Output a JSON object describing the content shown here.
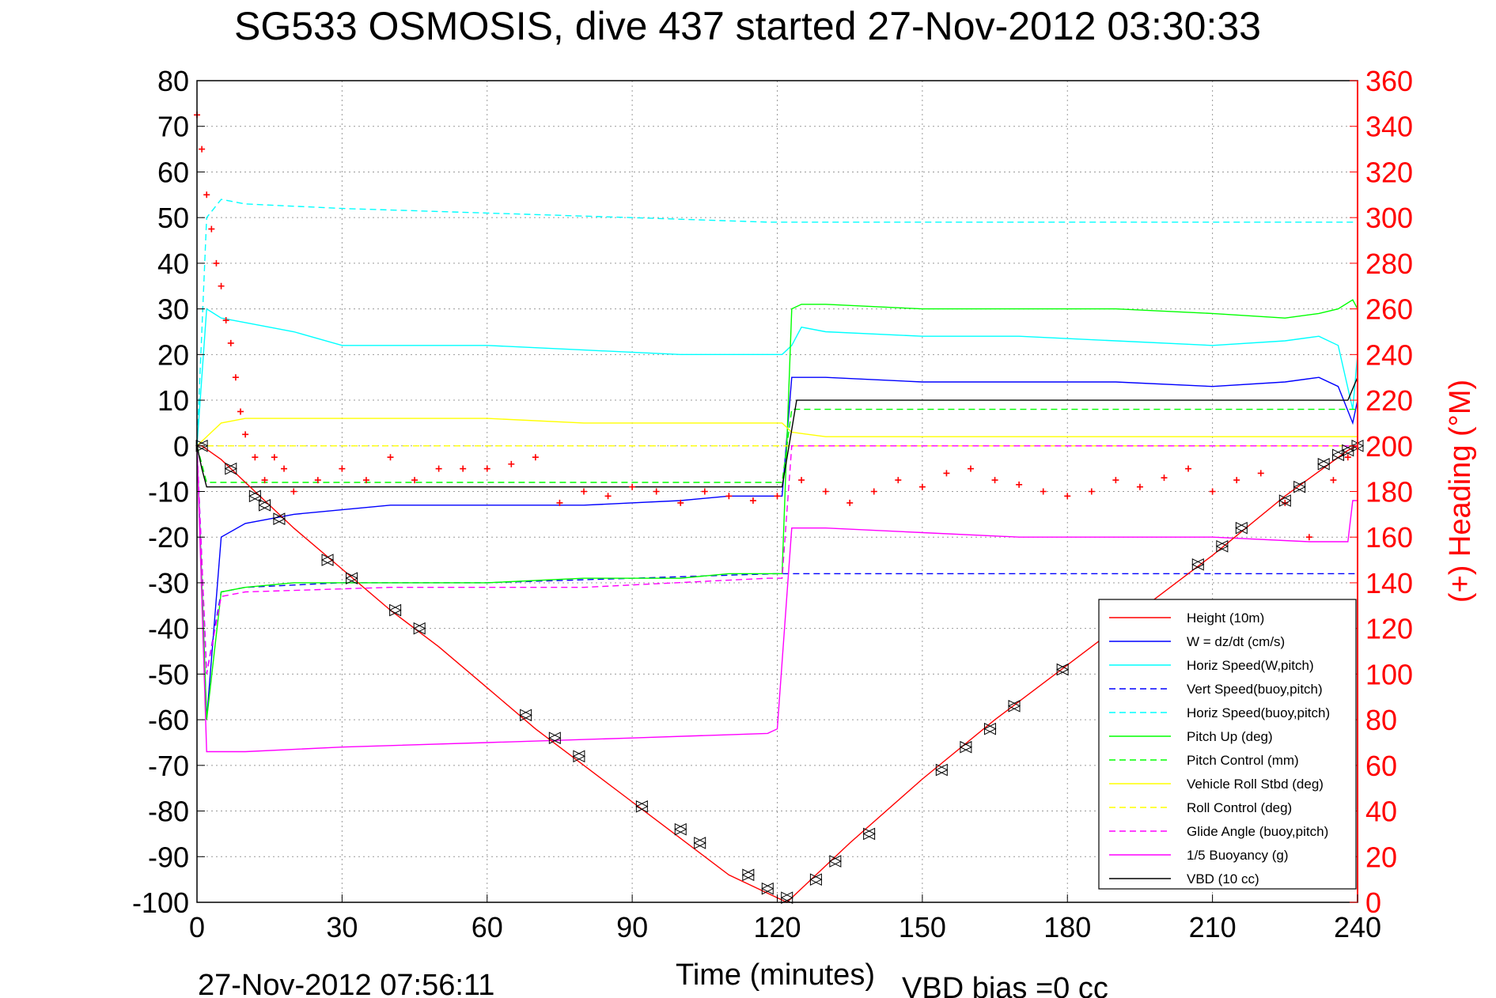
{
  "chart_data": {
    "type": "line",
    "title": "SG533 OSMOSIS, dive 437 started 27-Nov-2012 03:30:33",
    "xlabel": "Time (minutes)",
    "ylabel_right": "(+) Heading (°M)",
    "footer_left": "27-Nov-2012 07:56:11",
    "footer_right": "VBD bias =0 cc",
    "xlim": [
      0,
      240
    ],
    "ylim": [
      -100,
      80
    ],
    "ylim_right": [
      0,
      360
    ],
    "x_ticks": [
      0,
      30,
      60,
      90,
      120,
      150,
      180,
      210,
      240
    ],
    "y_ticks": [
      80,
      70,
      60,
      50,
      40,
      30,
      20,
      10,
      0,
      -10,
      -20,
      -30,
      -40,
      -50,
      -60,
      -70,
      -80,
      -90,
      -100
    ],
    "y_ticks_right": [
      360,
      340,
      320,
      300,
      280,
      260,
      240,
      220,
      200,
      180,
      160,
      140,
      120,
      100,
      80,
      60,
      40,
      20,
      0
    ],
    "grid": true,
    "legend_position": "bottom-right",
    "colors": {
      "height": "#ff0000",
      "w": "#0000ff",
      "horiz_speed": "#00ffff",
      "vert_speed_buoy": "#0000ff",
      "horiz_speed_buoy": "#00ffff",
      "pitch": "#00ff00",
      "pitch_control": "#00ff00",
      "roll": "#ffff00",
      "roll_control": "#ffff00",
      "glide_angle": "#ff00ff",
      "buoyancy": "#ff00ff",
      "vbd": "#000000",
      "heading": "#ff0000",
      "right_axis": "#ff0000"
    },
    "series": [
      {
        "name": "Height (10m)",
        "color": "#ff0000",
        "dash": "solid",
        "x": [
          0,
          1,
          5,
          10,
          20,
          30,
          40,
          50,
          60,
          70,
          80,
          90,
          100,
          110,
          118,
          122,
          126,
          135,
          150,
          165,
          180,
          195,
          210,
          225,
          238,
          240
        ],
        "y": [
          0,
          0,
          -3,
          -8,
          -18,
          -27,
          -36,
          -44,
          -53,
          -62,
          -70,
          -78,
          -86,
          -94,
          -98,
          -100,
          -96,
          -87,
          -73,
          -60,
          -48,
          -36,
          -24,
          -11,
          -1,
          0
        ]
      },
      {
        "name": "W = dz/dt (cm/s)",
        "color": "#0000ff",
        "dash": "solid",
        "x": [
          0,
          2,
          5,
          10,
          20,
          40,
          60,
          80,
          100,
          110,
          118,
          120,
          121,
          123,
          125,
          130,
          150,
          170,
          190,
          210,
          225,
          232,
          236,
          239,
          240
        ],
        "y": [
          0,
          -60,
          -20,
          -17,
          -15,
          -13,
          -13,
          -13,
          -12,
          -11,
          -11,
          -11,
          -11,
          15,
          15,
          15,
          14,
          14,
          14,
          13,
          14,
          15,
          13,
          5,
          10
        ]
      },
      {
        "name": "Horiz Speed(W,pitch)",
        "color": "#00ffff",
        "dash": "solid",
        "x": [
          0,
          2,
          5,
          10,
          20,
          30,
          40,
          60,
          80,
          100,
          118,
          121,
          123,
          125,
          130,
          150,
          170,
          190,
          210,
          225,
          232,
          236,
          239,
          240
        ],
        "y": [
          0,
          30,
          28,
          27,
          25,
          22,
          22,
          22,
          21,
          20,
          20,
          20,
          22,
          26,
          25,
          24,
          24,
          23,
          22,
          23,
          24,
          22,
          8,
          20
        ]
      },
      {
        "name": "Vert Speed(buoy,pitch)",
        "color": "#0000ff",
        "dash": "dashed",
        "x": [
          0,
          2,
          5,
          10,
          30,
          60,
          90,
          120,
          121,
          240
        ],
        "y": [
          0,
          -50,
          -32,
          -31,
          -30,
          -30,
          -29,
          -28,
          -28,
          -28
        ]
      },
      {
        "name": "Horiz Speed(buoy,pitch)",
        "color": "#00ffff",
        "dash": "dashed",
        "x": [
          0,
          2,
          5,
          10,
          30,
          60,
          90,
          118,
          121,
          240
        ],
        "y": [
          0,
          50,
          54,
          53,
          52,
          51,
          50,
          49,
          49,
          49
        ]
      },
      {
        "name": "Pitch Up (deg)",
        "color": "#00ff00",
        "dash": "solid",
        "x": [
          0,
          2,
          5,
          10,
          20,
          40,
          60,
          80,
          100,
          110,
          118,
          120,
          121,
          123,
          125,
          130,
          150,
          170,
          190,
          210,
          225,
          232,
          236,
          239,
          240
        ],
        "y": [
          0,
          -60,
          -32,
          -31,
          -30,
          -30,
          -30,
          -29,
          -29,
          -28,
          -28,
          -28,
          -28,
          30,
          31,
          31,
          30,
          30,
          30,
          29,
          28,
          29,
          30,
          32,
          30
        ]
      },
      {
        "name": "Pitch Control (mm)",
        "color": "#00ff00",
        "dash": "dashed",
        "x": [
          0,
          2,
          120,
          121,
          123,
          240
        ],
        "y": [
          0,
          -8,
          -8,
          -8,
          8,
          8
        ]
      },
      {
        "name": "Vehicle Roll Stbd (deg)",
        "color": "#ffff00",
        "dash": "solid",
        "x": [
          0,
          5,
          10,
          15,
          20,
          40,
          60,
          80,
          100,
          118,
          121,
          123,
          130,
          150,
          170,
          190,
          210,
          225,
          235,
          240
        ],
        "y": [
          0,
          5,
          6,
          6,
          6,
          6,
          6,
          5,
          5,
          5,
          5,
          3,
          2,
          2,
          2,
          2,
          2,
          2,
          2,
          2
        ]
      },
      {
        "name": "Roll Control (deg)",
        "color": "#ffff00",
        "dash": "dashed",
        "x": [
          0,
          240
        ],
        "y": [
          0,
          0
        ]
      },
      {
        "name": "Glide Angle (buoy,pitch)",
        "color": "#ff00ff",
        "dash": "dashed",
        "x": [
          0,
          2,
          5,
          10,
          40,
          80,
          118,
          121,
          123,
          240
        ],
        "y": [
          0,
          -50,
          -33,
          -32,
          -31,
          -31,
          -29,
          -29,
          0,
          0
        ]
      },
      {
        "name": "1/5 Buoyancy (g)",
        "color": "#ff00ff",
        "dash": "solid",
        "x": [
          0,
          2,
          10,
          30,
          60,
          90,
          118,
          120,
          123,
          130,
          150,
          170,
          190,
          210,
          230,
          238,
          239,
          240
        ],
        "y": [
          0,
          -67,
          -67,
          -66,
          -65,
          -64,
          -63,
          -62,
          -18,
          -18,
          -19,
          -20,
          -20,
          -20,
          -21,
          -21,
          -12,
          -12
        ]
      },
      {
        "name": "VBD (10 cc)",
        "color": "#000000",
        "dash": "solid",
        "x": [
          0,
          1,
          2,
          120,
          121,
          124,
          130,
          200,
          238,
          240
        ],
        "y": [
          0,
          -5,
          -9,
          -9,
          -9,
          10,
          10,
          10,
          10,
          15
        ]
      }
    ],
    "heading": {
      "name": "(+) Heading (°M)",
      "color": "#ff0000",
      "marker": "+",
      "x": [
        0,
        1,
        2,
        3,
        4,
        5,
        6,
        7,
        8,
        9,
        10,
        12,
        14,
        16,
        18,
        20,
        25,
        30,
        35,
        40,
        45,
        50,
        55,
        60,
        65,
        70,
        75,
        80,
        85,
        90,
        95,
        100,
        105,
        110,
        115,
        120,
        125,
        130,
        135,
        140,
        145,
        150,
        155,
        160,
        165,
        170,
        175,
        180,
        185,
        190,
        195,
        200,
        205,
        210,
        215,
        220,
        225,
        230,
        235,
        238
      ],
      "y": [
        345,
        330,
        310,
        295,
        280,
        270,
        255,
        245,
        230,
        215,
        205,
        195,
        185,
        195,
        190,
        180,
        185,
        190,
        185,
        195,
        185,
        190,
        190,
        190,
        192,
        195,
        175,
        180,
        178,
        182,
        180,
        175,
        180,
        178,
        176,
        178,
        185,
        180,
        175,
        180,
        185,
        182,
        188,
        190,
        185,
        183,
        180,
        178,
        180,
        185,
        182,
        186,
        190,
        180,
        185,
        188,
        175,
        160,
        185,
        195
      ]
    },
    "depth_markers": {
      "name": "Depth markers",
      "x": [
        1,
        7,
        12,
        14,
        17,
        27,
        32,
        41,
        46,
        68,
        74,
        79,
        92,
        100,
        104,
        114,
        118,
        122,
        128,
        132,
        139,
        154,
        159,
        164,
        169,
        179,
        207,
        212,
        216,
        225,
        228,
        233,
        236,
        238,
        240
      ],
      "y": [
        0,
        -5,
        -11,
        -13,
        -16,
        -25,
        -29,
        -36,
        -40,
        -59,
        -64,
        -68,
        -79,
        -84,
        -87,
        -94,
        -97,
        -99,
        -95,
        -91,
        -85,
        -71,
        -66,
        -62,
        -57,
        -49,
        -26,
        -22,
        -18,
        -12,
        -9,
        -4,
        -2,
        -1,
        0
      ]
    }
  }
}
